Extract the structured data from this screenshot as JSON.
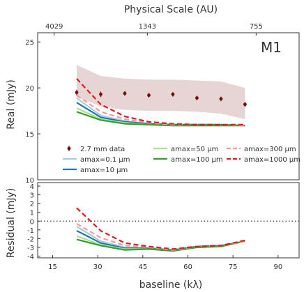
{
  "chart_data": {
    "type": "line",
    "panel_label": "M1",
    "top_axis": {
      "title": "Physical Scale (AU)",
      "ticks": [
        {
          "klambda": 15.5,
          "label": "4029"
        },
        {
          "klambda": 46.5,
          "label": "1343"
        },
        {
          "klambda": 82.7,
          "label": "755"
        }
      ]
    },
    "x_axis": {
      "label": "baseline (kλ)",
      "range": [
        10,
        97
      ],
      "ticks": [
        15,
        30,
        45,
        60,
        75,
        90
      ]
    },
    "upper_panel": {
      "ylabel": "Real (mJy)",
      "range": [
        10,
        26
      ],
      "ticks": [
        10,
        15,
        20,
        25
      ],
      "data_points": {
        "name": "2.7 mm data",
        "color": "#7a0a0a",
        "x": [
          23,
          31,
          39,
          47,
          55,
          63,
          71,
          79
        ],
        "y": [
          19.5,
          19.3,
          19.4,
          19.2,
          19.3,
          18.9,
          18.8,
          18.2
        ],
        "err": [
          0.3,
          0.3,
          0.25,
          0.25,
          0.25,
          0.25,
          0.25,
          0.3
        ]
      },
      "band": {
        "color": "#c9a0a0",
        "x": [
          23,
          31,
          39,
          47,
          55,
          63,
          71,
          79
        ],
        "lower": [
          19.0,
          18.0,
          17.6,
          17.5,
          17.5,
          17.4,
          17.2,
          16.6
        ],
        "upper": [
          22.5,
          21.3,
          21.0,
          20.9,
          20.9,
          20.8,
          20.7,
          20.0
        ]
      },
      "series": [
        {
          "name": "amax=0.1 µm",
          "color": "#a6cee3",
          "dash": "solid",
          "x": [
            23,
            31,
            39,
            47,
            55,
            63,
            71,
            79
          ],
          "y": [
            18.9,
            17.0,
            16.4,
            16.1,
            16.0,
            16.0,
            16.0,
            15.9
          ]
        },
        {
          "name": "amax=10 µm",
          "color": "#1f78b4",
          "dash": "solid",
          "x": [
            23,
            31,
            39,
            47,
            55,
            63,
            71,
            79
          ],
          "y": [
            18.4,
            16.8,
            16.3,
            16.1,
            16.0,
            16.0,
            16.0,
            15.9
          ]
        },
        {
          "name": "amax=50 µm",
          "color": "#b2df8a",
          "dash": "solid",
          "x": [
            23,
            31,
            39,
            47,
            55,
            63,
            71,
            79
          ],
          "y": [
            17.8,
            16.6,
            16.2,
            16.0,
            15.9,
            15.9,
            15.9,
            15.9
          ]
        },
        {
          "name": "amax=100 µm",
          "color": "#33a02c",
          "dash": "solid",
          "x": [
            23,
            31,
            39,
            47,
            55,
            63,
            71,
            79
          ],
          "y": [
            17.4,
            16.5,
            16.1,
            16.0,
            15.9,
            15.9,
            15.9,
            15.9
          ]
        },
        {
          "name": "amax=300 µm",
          "color": "#fb9a99",
          "dash": "dashed",
          "x": [
            23,
            31,
            39,
            47,
            55,
            63,
            71,
            79
          ],
          "y": [
            19.2,
            17.4,
            16.6,
            16.2,
            16.0,
            16.0,
            16.0,
            15.9
          ]
        },
        {
          "name": "amax=1000 µm",
          "color": "#e31a1c",
          "dash": "dashed",
          "x": [
            23,
            31,
            39,
            47,
            55,
            63,
            71,
            79
          ],
          "y": [
            21.0,
            18.2,
            16.9,
            16.3,
            16.1,
            16.0,
            16.0,
            16.0
          ]
        }
      ]
    },
    "lower_panel": {
      "ylabel": "Residual (mJy)",
      "range": [
        -4.2,
        4.4
      ],
      "ticks": [
        -4,
        -3,
        -2,
        -1,
        0,
        1,
        2,
        3,
        4
      ],
      "zero_line": true,
      "series": [
        {
          "name": "amax=0.1 µm",
          "color": "#a6cee3",
          "dash": "solid",
          "x": [
            23,
            31,
            39,
            47,
            55,
            63,
            71,
            79
          ],
          "y": [
            -0.6,
            -2.3,
            -3.0,
            -3.1,
            -3.3,
            -2.9,
            -2.8,
            -2.3
          ]
        },
        {
          "name": "amax=10 µm",
          "color": "#1f78b4",
          "dash": "solid",
          "x": [
            23,
            31,
            39,
            47,
            55,
            63,
            71,
            79
          ],
          "y": [
            -1.1,
            -2.5,
            -3.1,
            -3.1,
            -3.3,
            -2.9,
            -2.8,
            -2.3
          ]
        },
        {
          "name": "amax=50 µm",
          "color": "#b2df8a",
          "dash": "solid",
          "x": [
            23,
            31,
            39,
            47,
            55,
            63,
            71,
            79
          ],
          "y": [
            -1.7,
            -2.7,
            -3.2,
            -3.2,
            -3.4,
            -3.0,
            -2.9,
            -2.3
          ]
        },
        {
          "name": "amax=100 µm",
          "color": "#33a02c",
          "dash": "solid",
          "x": [
            23,
            31,
            39,
            47,
            55,
            63,
            71,
            79
          ],
          "y": [
            -2.1,
            -2.8,
            -3.3,
            -3.2,
            -3.4,
            -3.0,
            -2.9,
            -2.3
          ]
        },
        {
          "name": "amax=300 µm",
          "color": "#fb9a99",
          "dash": "dashed",
          "x": [
            23,
            31,
            39,
            47,
            55,
            63,
            71,
            79
          ],
          "y": [
            -0.3,
            -1.9,
            -2.8,
            -3.0,
            -3.3,
            -2.9,
            -2.8,
            -2.3
          ]
        },
        {
          "name": "amax=1000 µm",
          "color": "#e31a1c",
          "dash": "dashed",
          "x": [
            23,
            31,
            39,
            47,
            55,
            63,
            71,
            79
          ],
          "y": [
            1.5,
            -1.1,
            -2.5,
            -2.9,
            -3.2,
            -2.9,
            -2.8,
            -2.2
          ]
        }
      ]
    },
    "legend": {
      "placement": "lower-center of upper panel",
      "columns": [
        [
          "2.7 mm data",
          "amax=0.1 µm",
          "amax=10 µm"
        ],
        [
          "amax=50 µm",
          "amax=100 µm"
        ],
        [
          "amax=300 µm",
          "amax=1000 µm"
        ]
      ]
    }
  }
}
